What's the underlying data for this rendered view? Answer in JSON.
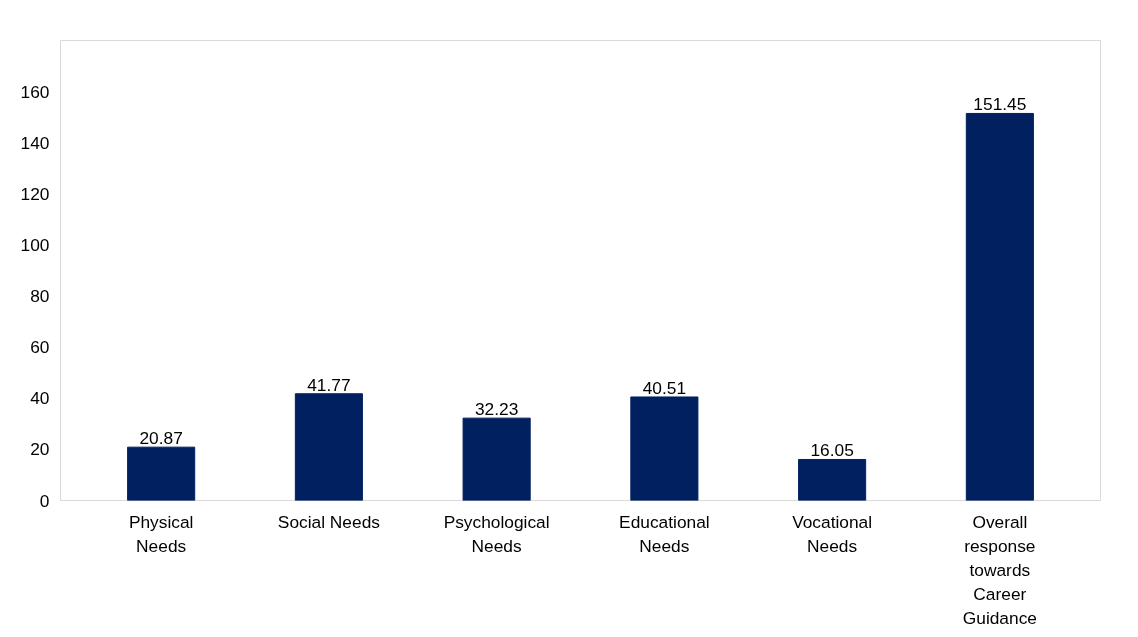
{
  "chart_data": {
    "type": "bar",
    "categories": [
      "Physical Needs",
      "Social Needs",
      "Psychological Needs",
      "Educational Needs",
      "Vocational Needs",
      "Overall response towards Career Guidance"
    ],
    "values": [
      20.87,
      41.77,
      32.23,
      40.51,
      16.05,
      151.45
    ],
    "color": "#002060",
    "ylim": [
      0,
      180
    ],
    "yticks": [
      0,
      20,
      40,
      60,
      80,
      100,
      120,
      140,
      160
    ],
    "grid": false,
    "data_labels": true
  }
}
